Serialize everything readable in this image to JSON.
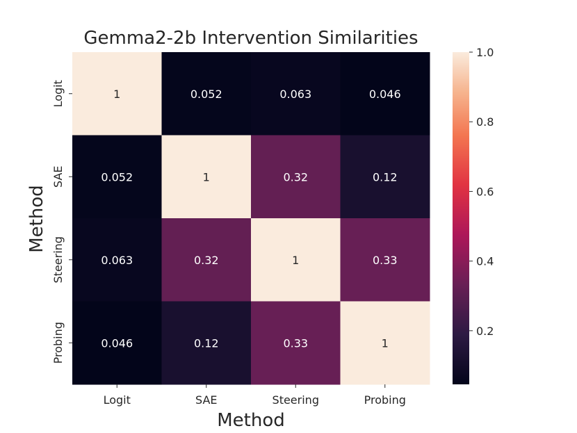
{
  "chart_data": {
    "type": "heatmap",
    "title": "Gemma2-2b Intervention Similarities",
    "xlabel": "Method",
    "ylabel": "Method",
    "x_categories": [
      "Logit",
      "SAE",
      "Steering",
      "Probing"
    ],
    "y_categories": [
      "Logit",
      "SAE",
      "Steering",
      "Probing"
    ],
    "values": [
      [
        1,
        0.052,
        0.063,
        0.046
      ],
      [
        0.052,
        1,
        0.32,
        0.12
      ],
      [
        0.063,
        0.32,
        1,
        0.33
      ],
      [
        0.046,
        0.12,
        0.33,
        1
      ]
    ],
    "value_labels": [
      [
        "1",
        "0.052",
        "0.063",
        "0.046"
      ],
      [
        "0.052",
        "1",
        "0.32",
        "0.12"
      ],
      [
        "0.063",
        "0.32",
        "1",
        "0.33"
      ],
      [
        "0.046",
        "0.12",
        "0.33",
        "1"
      ]
    ],
    "colormap": "rocket",
    "colorbar": {
      "range": [
        0.046,
        1.0
      ],
      "ticks": [
        0.2,
        0.4,
        0.6,
        0.8,
        1.0
      ],
      "tick_labels": [
        "0.2",
        "0.4",
        "0.6",
        "0.8",
        "1.0"
      ]
    }
  }
}
